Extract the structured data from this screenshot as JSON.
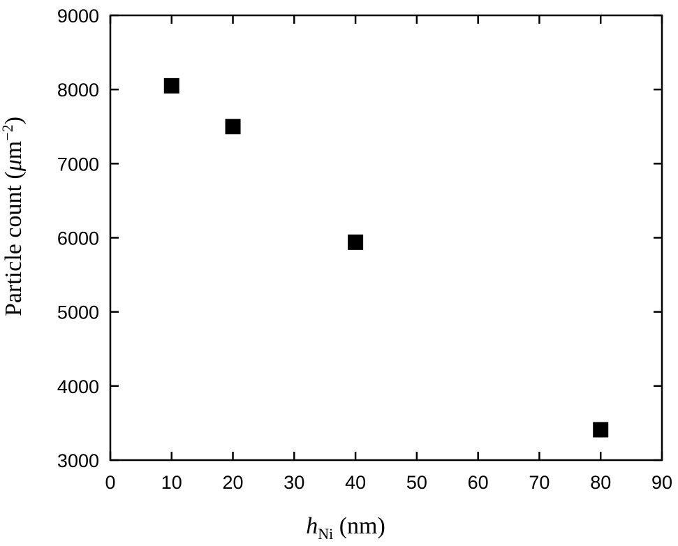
{
  "chart_data": {
    "type": "scatter",
    "x_label": {
      "var": "h",
      "sub": "Ni",
      "unit": " (nm)"
    },
    "y_label": {
      "pre": "Particle count (",
      "mu": "μ",
      "m": "m",
      "exp": "−2",
      "post": ")"
    },
    "series": [
      {
        "color": "#000000",
        "x": [
          10,
          20,
          40,
          80
        ],
        "values": [
          8050,
          7500,
          5940,
          3410
        ]
      }
    ],
    "xlim": [
      0,
      90
    ],
    "xticks": [
      0,
      10,
      20,
      30,
      40,
      50,
      60,
      70,
      80,
      90
    ],
    "ylim": [
      3000,
      9000
    ],
    "yticks": [
      3000,
      4000,
      5000,
      6000,
      7000,
      8000,
      9000
    ],
    "grid": false
  }
}
